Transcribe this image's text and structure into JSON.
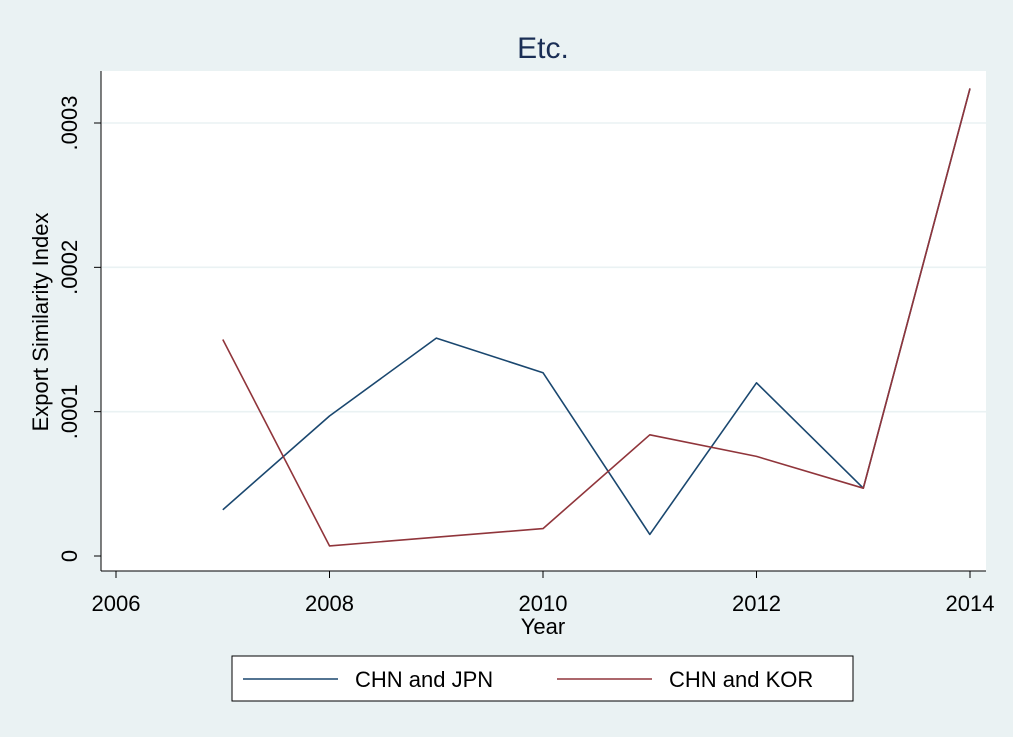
{
  "chart_data": {
    "type": "line",
    "title": "Etc.",
    "xlabel": "Year",
    "ylabel": "Export Similarity Index",
    "xlim": [
      2006,
      2014
    ],
    "ylim": [
      0,
      0.0003
    ],
    "x_ticks": [
      2006,
      2008,
      2010,
      2012,
      2014
    ],
    "x_tick_labels": [
      "2006",
      "2008",
      "2010",
      "2012",
      "2014"
    ],
    "y_ticks": [
      0,
      0.0001,
      0.0002,
      0.0003
    ],
    "y_tick_labels": [
      "0",
      ".0001",
      ".0002",
      ".0003"
    ],
    "grid": true,
    "legend_position": "bottom",
    "x": [
      2007,
      2008,
      2009,
      2010,
      2011,
      2012,
      2013,
      2014
    ],
    "series": [
      {
        "name": "CHN and JPN",
        "color": "#1a476f",
        "values": [
          3.2e-05,
          9.7e-05,
          0.000151,
          0.000127,
          1.5e-05,
          0.00012,
          4.7e-05,
          0.000324
        ]
      },
      {
        "name": "CHN and KOR",
        "color": "#90353b",
        "values": [
          0.00015,
          7e-06,
          1.3e-05,
          1.9e-05,
          8.4e-05,
          6.9e-05,
          4.7e-05,
          0.000324
        ]
      }
    ]
  },
  "colors": {
    "background": "#eaf2f3",
    "plot_area": "#ffffff",
    "grid": "#eaf2f3",
    "title": "#1a2e55"
  }
}
